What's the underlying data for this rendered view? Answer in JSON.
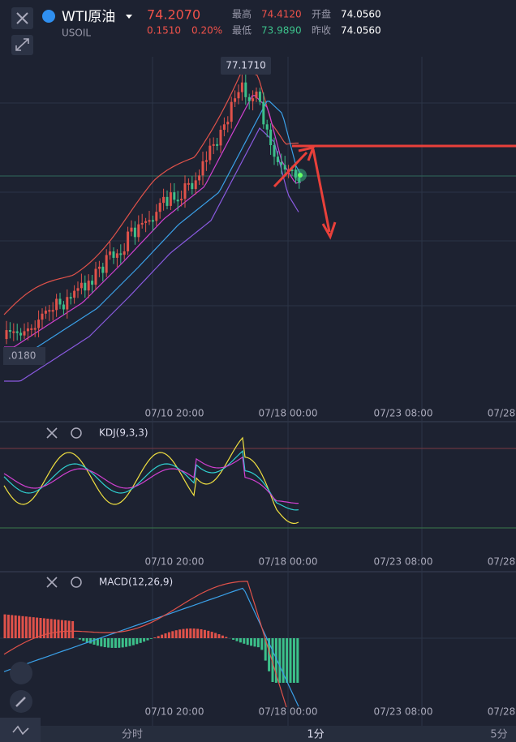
{
  "header": {
    "title": "WTI原油",
    "symbol": "USOIL",
    "price": "74.2070",
    "change": "0.1510",
    "change_pct": "0.20%",
    "stats": [
      {
        "label": "最高",
        "value": "74.4120"
      },
      {
        "label": "开盘",
        "value": "74.0560"
      },
      {
        "label": "最低",
        "value": "73.9890"
      },
      {
        "label": "昨收",
        "value": "74.0560"
      }
    ]
  },
  "main_chart": {
    "high_label": "77.1710",
    "low_label": ".0180",
    "x_labels": [
      "07/10 20:00",
      "07/18 00:00",
      "07/23 08:00",
      "07/28"
    ]
  },
  "kdj": {
    "title": "KDJ(9,3,3)",
    "x_labels": [
      "07/10 20:00",
      "07/18 00:00",
      "07/23 08:00",
      "07/28"
    ]
  },
  "macd": {
    "title": "MACD(12,26,9)",
    "x_labels": [
      "07/10 20:00",
      "07/18 00:00",
      "07/23 08:00",
      "07/28"
    ]
  },
  "tabs": [
    "分时",
    "1分",
    "5分"
  ]
}
